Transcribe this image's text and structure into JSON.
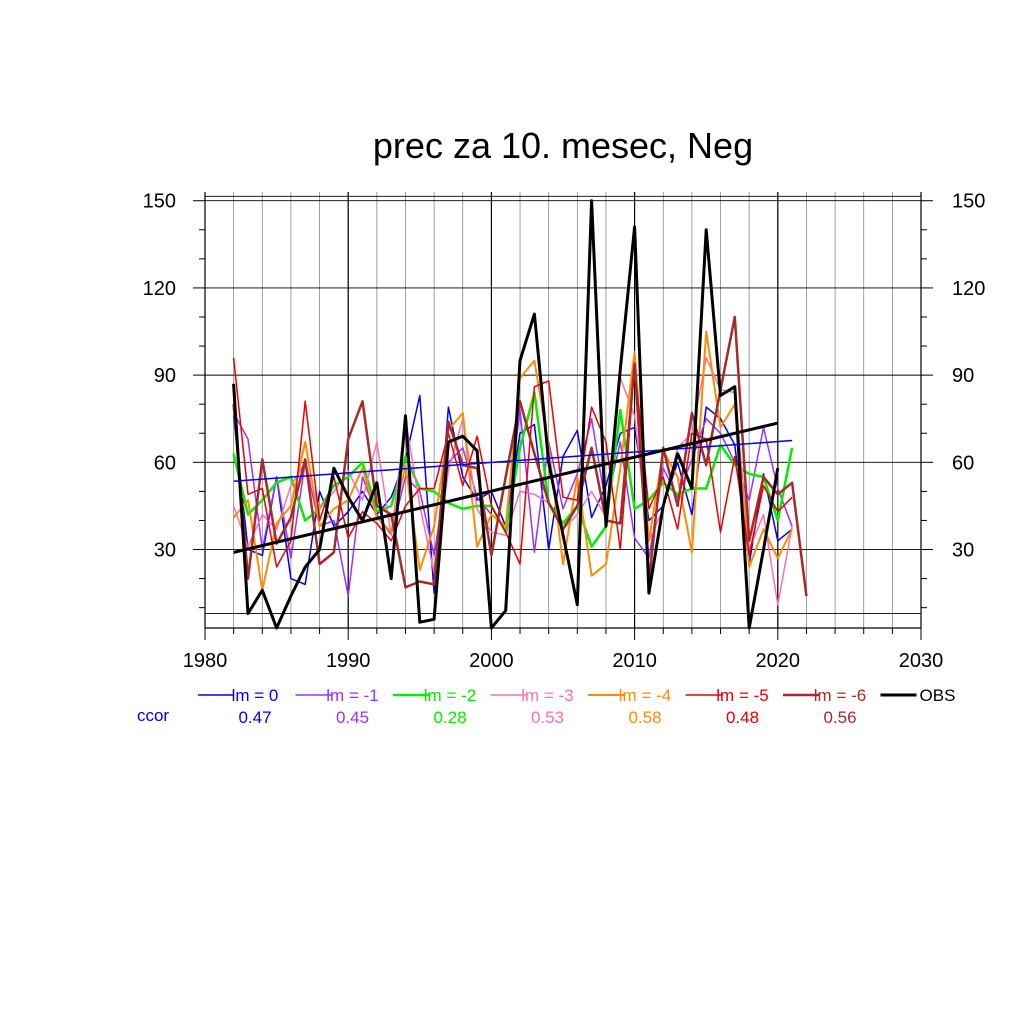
{
  "chart_data": {
    "type": "line",
    "title": "prec za 10. mesec, Neg",
    "xlabel": "",
    "ylabel": "",
    "xlim": [
      1980,
      2030
    ],
    "ylim": [
      3,
      153
    ],
    "x_ticks": [
      1980,
      1990,
      2000,
      2010,
      2020,
      2030
    ],
    "y_ticks": [
      30,
      60,
      90,
      120,
      150
    ],
    "grid": true,
    "ccor_label": "ccor",
    "series": [
      {
        "name": "lm = 0",
        "color": "#0000ee",
        "width": 1.5,
        "ccor": "0.47",
        "x": [
          1982,
          1983,
          1984,
          1985,
          1986,
          1987,
          1988,
          1989,
          1990,
          1991,
          1992,
          1993,
          1994,
          1995,
          1996,
          1997,
          1998,
          1999,
          2000,
          2001,
          2002,
          2003,
          2004,
          2005,
          2006,
          2007,
          2008,
          2009,
          2010,
          2011,
          2012,
          2013,
          2014,
          2015,
          2016,
          2017,
          2018,
          2019,
          2020,
          2021
        ],
        "y": [
          76,
          30,
          28,
          55,
          20,
          18,
          50,
          38,
          43,
          50,
          42,
          48,
          61,
          83,
          15,
          79,
          55,
          47,
          50,
          38,
          70,
          73,
          30,
          62,
          71,
          41,
          52,
          70,
          72,
          40,
          45,
          60,
          42,
          79,
          75,
          66,
          25,
          56,
          33,
          37
        ],
        "trend": [
          53.5,
          67.5
        ]
      },
      {
        "name": "lm = -1",
        "color": "#9b30ff",
        "width": 1.5,
        "ccor": "0.45",
        "x": [
          1982,
          1983,
          1984,
          1985,
          1986,
          1987,
          1988,
          1989,
          1990,
          1991,
          1992,
          1993,
          1994,
          1995,
          1996,
          1997,
          1998,
          1999,
          2000,
          2001,
          2002,
          2003,
          2004,
          2005,
          2006,
          2007,
          2008,
          2009,
          2010,
          2011,
          2012,
          2013,
          2014,
          2015,
          2016,
          2017,
          2018,
          2019,
          2020,
          2021
        ],
        "y": [
          77,
          68,
          30,
          55,
          27,
          60,
          38,
          40,
          14,
          55,
          42,
          35,
          55,
          50,
          28,
          60,
          65,
          48,
          42,
          38,
          78,
          29,
          67,
          44,
          56,
          75,
          45,
          67,
          34,
          27,
          58,
          48,
          61,
          75,
          70,
          60,
          47,
          72,
          51,
          38
        ],
        "trend": null
      },
      {
        "name": "lm = -2",
        "color": "#00ee00",
        "width": 2.5,
        "ccor": "0.28",
        "x": [
          1982,
          1983,
          1984,
          1985,
          1986,
          1987,
          1988,
          1989,
          1990,
          1991,
          1992,
          1993,
          1994,
          1995,
          1996,
          1997,
          1998,
          1999,
          2000,
          2001,
          2002,
          2003,
          2004,
          2005,
          2006,
          2007,
          2008,
          2009,
          2010,
          2011,
          2012,
          2013,
          2014,
          2015,
          2016,
          2017,
          2018,
          2019,
          2020,
          2021
        ],
        "y": [
          63,
          42,
          47,
          53,
          55,
          40,
          44,
          52,
          55,
          60,
          43,
          45,
          62,
          51,
          50,
          46,
          44,
          45,
          45,
          36,
          65,
          84,
          46,
          39,
          45,
          31,
          38,
          78,
          44,
          47,
          53,
          49,
          51,
          51,
          66,
          59,
          56,
          55,
          40,
          65
        ],
        "trend": null
      },
      {
        "name": "lm = -3",
        "color": "#ff6eb4",
        "width": 1.5,
        "ccor": "0.53",
        "x": [
          1982,
          1983,
          1984,
          1985,
          1986,
          1987,
          1988,
          1989,
          1990,
          1991,
          1992,
          1993,
          1994,
          1995,
          1996,
          1997,
          1998,
          1999,
          2000,
          2001,
          2002,
          2003,
          2004,
          2005,
          2006,
          2007,
          2008,
          2009,
          2010,
          2011,
          2012,
          2013,
          2014,
          2015,
          2016,
          2017,
          2018,
          2019,
          2020,
          2021
        ],
        "y": [
          45,
          31,
          42,
          37,
          52,
          60,
          44,
          50,
          57,
          47,
          67,
          35,
          75,
          45,
          22,
          57,
          75,
          44,
          36,
          35,
          50,
          49,
          46,
          37,
          42,
          50,
          41,
          89,
          76,
          33,
          44,
          65,
          70,
          96,
          85,
          84,
          30,
          42,
          11,
          38
        ],
        "trend": null
      },
      {
        "name": "lm = -4",
        "color": "#ff8c00",
        "width": 2.0,
        "ccor": "0.58",
        "x": [
          1982,
          1983,
          1984,
          1985,
          1986,
          1987,
          1988,
          1989,
          1990,
          1991,
          1992,
          1993,
          1994,
          1995,
          1996,
          1997,
          1998,
          1999,
          2000,
          2001,
          2002,
          2003,
          2004,
          2005,
          2006,
          2007,
          2008,
          2009,
          2010,
          2011,
          2012,
          2013,
          2014,
          2015,
          2016,
          2017,
          2018,
          2019,
          2020,
          2021
        ],
        "y": [
          41,
          47,
          16,
          39,
          45,
          67,
          38,
          44,
          47,
          58,
          41,
          36,
          59,
          23,
          38,
          71,
          77,
          31,
          42,
          38,
          89,
          95,
          65,
          25,
          55,
          21,
          25,
          58,
          98,
          33,
          64,
          55,
          29,
          105,
          72,
          80,
          24,
          37,
          27,
          37
        ],
        "trend": null
      },
      {
        "name": "lm = -5",
        "color": "#ee0000",
        "width": 1.5,
        "ccor": "0.48",
        "x": [
          1982,
          1983,
          1984,
          1985,
          1986,
          1987,
          1988,
          1989,
          1990,
          1991,
          1992,
          1993,
          1994,
          1995,
          1996,
          1997,
          1998,
          1999,
          2000,
          2001,
          2002,
          2003,
          2004,
          2005,
          2006,
          2007,
          2008,
          2009,
          2010,
          2011,
          2012,
          2013,
          2014,
          2015,
          2016,
          2017,
          2018,
          2019,
          2020,
          2021
        ],
        "y": [
          96,
          49,
          51,
          24,
          33,
          81,
          40,
          55,
          34,
          43,
          39,
          33,
          45,
          51,
          51,
          70,
          52,
          69,
          45,
          36,
          25,
          86,
          88,
          48,
          47,
          79,
          67,
          30,
          93,
          44,
          55,
          37,
          70,
          68,
          36,
          62,
          28,
          52,
          43,
          48
        ],
        "trend": null
      },
      {
        "name": "lm = -6",
        "color": "#a52a2a",
        "width": 2.5,
        "ccor": "0.56",
        "x": [
          1982,
          1983,
          1984,
          1985,
          1986,
          1987,
          1988,
          1989,
          1990,
          1991,
          1992,
          1993,
          1994,
          1995,
          1996,
          1997,
          1998,
          1999,
          2000,
          2001,
          2002,
          2003,
          2004,
          2005,
          2006,
          2007,
          2008,
          2009,
          2010,
          2011,
          2012,
          2013,
          2014,
          2015,
          2016,
          2017,
          2018,
          2019,
          2020,
          2021,
          2022
        ],
        "y": [
          80,
          20,
          61,
          32,
          41,
          61,
          25,
          29,
          68,
          81,
          45,
          42,
          17,
          19,
          18,
          74,
          59,
          58,
          28,
          55,
          81,
          63,
          46,
          37,
          45,
          65,
          40,
          39,
          94,
          19,
          65,
          45,
          77,
          59,
          85,
          110,
          33,
          55,
          49,
          53,
          14
        ],
        "trend": null
      },
      {
        "name": "OBS",
        "color": "#000000",
        "width": 3.0,
        "ccor": "",
        "x": [
          1982,
          1983,
          1984,
          1985,
          1986,
          1987,
          1988,
          1989,
          1990,
          1991,
          1992,
          1993,
          1994,
          1995,
          1996,
          1997,
          1998,
          1999,
          2000,
          2001,
          2002,
          2003,
          2004,
          2005,
          2006,
          2007,
          2008,
          2009,
          2010,
          2011,
          2012,
          2013,
          2014,
          2015,
          2016,
          2017,
          2018,
          2019,
          2020
        ],
        "y": [
          87,
          8,
          16,
          3,
          14,
          24,
          30,
          58,
          48,
          40,
          53,
          20,
          76,
          5,
          6,
          67,
          69,
          64,
          3,
          9,
          95,
          111,
          60,
          35,
          11,
          150,
          38,
          92,
          141,
          15,
          45,
          63,
          51,
          140,
          83,
          86,
          3,
          30,
          58
        ],
        "trend": [
          29,
          73.5
        ]
      }
    ]
  }
}
